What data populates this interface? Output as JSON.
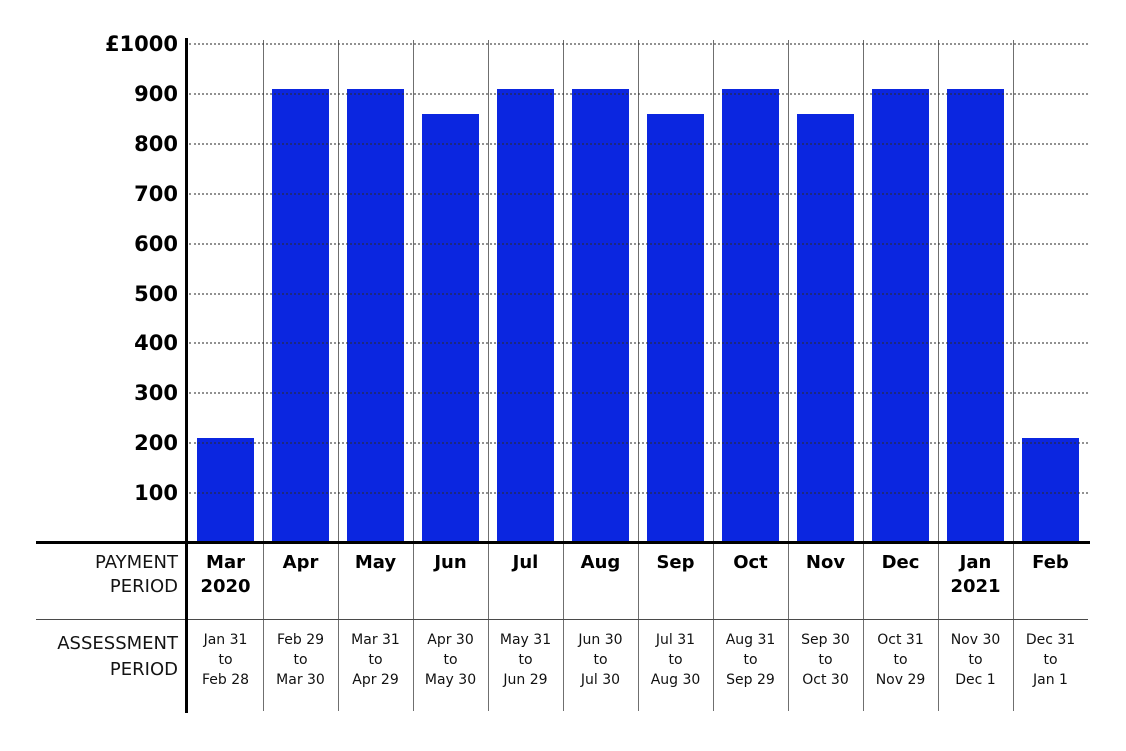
{
  "chart_data": {
    "type": "bar",
    "title": "",
    "categories": [
      "Mar 2020",
      "Apr",
      "May",
      "Jun",
      "Jul",
      "Aug",
      "Sep",
      "Oct",
      "Nov",
      "Dec",
      "Jan 2021",
      "Feb"
    ],
    "values": [
      210,
      910,
      910,
      860,
      910,
      910,
      860,
      910,
      860,
      910,
      910,
      210
    ],
    "xlabel": "",
    "ylabel": "£",
    "ylim": [
      0,
      1000
    ],
    "ytick_interval": 100,
    "yticks": [
      {
        "value": 1000,
        "label": "£1000"
      },
      {
        "value": 900,
        "label": "900"
      },
      {
        "value": 800,
        "label": "800"
      },
      {
        "value": 700,
        "label": "700"
      },
      {
        "value": 600,
        "label": "600"
      },
      {
        "value": 500,
        "label": "500"
      },
      {
        "value": 400,
        "label": "400"
      },
      {
        "value": 300,
        "label": "300"
      },
      {
        "value": 200,
        "label": "200"
      },
      {
        "value": 100,
        "label": "100"
      }
    ],
    "grid": "horizontal-dotted",
    "legend": "none",
    "colors": {
      "bar": "#0b26e0",
      "axis": "#000000",
      "gridline": "#8f8f8f",
      "column_separator": "#6f6f6f",
      "text": "#000000"
    },
    "table": {
      "row1_label": "PAYMENT\nPERIOD",
      "row2_label": "ASSESSMENT\nPERIOD",
      "columns": [
        {
          "payment_period": "Mar\n2020",
          "assessment_period": "Jan 31\nto\nFeb 28"
        },
        {
          "payment_period": "Apr",
          "assessment_period": "Feb 29\nto\nMar 30"
        },
        {
          "payment_period": "May",
          "assessment_period": "Mar 31\nto\nApr 29"
        },
        {
          "payment_period": "Jun",
          "assessment_period": "Apr 30\nto\nMay 30"
        },
        {
          "payment_period": "Jul",
          "assessment_period": "May 31\nto\nJun 29"
        },
        {
          "payment_period": "Aug",
          "assessment_period": "Jun 30\nto\nJul 30"
        },
        {
          "payment_period": "Sep",
          "assessment_period": "Jul 31\nto\nAug 30"
        },
        {
          "payment_period": "Oct",
          "assessment_period": "Aug 31\nto\nSep 29"
        },
        {
          "payment_period": "Nov",
          "assessment_period": "Sep 30\nto\nOct 30"
        },
        {
          "payment_period": "Dec",
          "assessment_period": "Oct 31\nto\nNov 29"
        },
        {
          "payment_period": "Jan\n2021",
          "assessment_period": "Nov 30\nto\nDec 1"
        },
        {
          "payment_period": "Feb",
          "assessment_period": "Dec 31\nto\nJan 1"
        }
      ]
    }
  }
}
